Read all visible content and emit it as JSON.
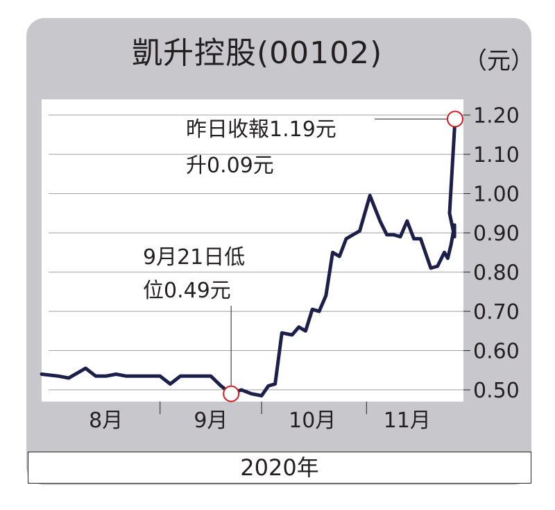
{
  "header": {
    "title": "凱升控股(00102)",
    "unit": "（元）"
  },
  "footer": {
    "year": "2020年"
  },
  "annotations": {
    "latest_line1": "昨日收報1.19元",
    "latest_line2": "升0.09元",
    "low_line1": "9月21日低",
    "low_line2": "位0.49元"
  },
  "colors": {
    "line": "#1b1f4a",
    "marker": "#d7191f",
    "frame": "#c8c8cc",
    "plot_bg": "#ffffff",
    "grid": "#9d9da3",
    "text": "#231f20"
  },
  "chart_data": {
    "type": "line",
    "title": "凱升控股(00102)",
    "unit": "元",
    "ylim": [
      0.47,
      1.24
    ],
    "yticks": [
      "0.50",
      "0.60",
      "0.70",
      "0.80",
      "0.90",
      "1.00",
      "1.10",
      "1.20"
    ],
    "ytick_values": [
      0.5,
      0.6,
      0.7,
      0.8,
      0.9,
      1.0,
      1.1,
      1.2
    ],
    "x_range": [
      "2020-07-27",
      "2020-11-27"
    ],
    "month_labels": [
      {
        "label": "8月",
        "date": "2020-08-15"
      },
      {
        "label": "9月",
        "date": "2020-09-15"
      },
      {
        "label": "10月",
        "date": "2020-10-15"
      },
      {
        "label": "11月",
        "date": "2020-11-12"
      }
    ],
    "month_boundaries": [
      "2020-08-31",
      "2020-09-30",
      "2020-10-31"
    ],
    "grid": true,
    "series": [
      {
        "points": [
          [
            "2020-07-27",
            0.54
          ],
          [
            "2020-08-01",
            0.535
          ],
          [
            "2020-08-04",
            0.53
          ],
          [
            "2020-08-09",
            0.555
          ],
          [
            "2020-08-12",
            0.535
          ],
          [
            "2020-08-15",
            0.535
          ],
          [
            "2020-08-18",
            0.54
          ],
          [
            "2020-08-21",
            0.535
          ],
          [
            "2020-08-24",
            0.535
          ],
          [
            "2020-08-27",
            0.535
          ],
          [
            "2020-08-31",
            0.535
          ],
          [
            "2020-09-03",
            0.515
          ],
          [
            "2020-09-06",
            0.535
          ],
          [
            "2020-09-09",
            0.535
          ],
          [
            "2020-09-12",
            0.535
          ],
          [
            "2020-09-15",
            0.535
          ],
          [
            "2020-09-18",
            0.51
          ],
          [
            "2020-09-21",
            0.49
          ],
          [
            "2020-09-24",
            0.5
          ],
          [
            "2020-09-27",
            0.49
          ],
          [
            "2020-09-30",
            0.485
          ],
          [
            "2020-10-02",
            0.51
          ],
          [
            "2020-10-04",
            0.515
          ],
          [
            "2020-10-06",
            0.645
          ],
          [
            "2020-10-09",
            0.64
          ],
          [
            "2020-10-11",
            0.66
          ],
          [
            "2020-10-13",
            0.65
          ],
          [
            "2020-10-15",
            0.705
          ],
          [
            "2020-10-17",
            0.7
          ],
          [
            "2020-10-19",
            0.74
          ],
          [
            "2020-10-21",
            0.85
          ],
          [
            "2020-10-23",
            0.84
          ],
          [
            "2020-10-25",
            0.885
          ],
          [
            "2020-10-27",
            0.895
          ],
          [
            "2020-10-29",
            0.905
          ],
          [
            "2020-11-01",
            0.995
          ],
          [
            "2020-11-04",
            0.93
          ],
          [
            "2020-11-06",
            0.895
          ],
          [
            "2020-11-08",
            0.895
          ],
          [
            "2020-11-10",
            0.89
          ],
          [
            "2020-11-12",
            0.93
          ],
          [
            "2020-11-14",
            0.885
          ],
          [
            "2020-11-16",
            0.885
          ],
          [
            "2020-11-19",
            0.81
          ],
          [
            "2020-11-21",
            0.815
          ],
          [
            "2020-11-23",
            0.85
          ],
          [
            "2020-11-24",
            0.835
          ],
          [
            "2020-11-25",
            0.87
          ],
          [
            "2020-11-26",
            0.92
          ],
          [
            "2020-11-26",
            0.89
          ],
          [
            "2020-11-27",
            0.95
          ],
          [
            "2020-11-27",
            1.19
          ]
        ]
      }
    ],
    "highlight_points": [
      {
        "name": "low",
        "date": "2020-09-21",
        "value": 0.49
      },
      {
        "name": "latest",
        "date": "2020-11-27",
        "value": 1.19
      }
    ]
  }
}
